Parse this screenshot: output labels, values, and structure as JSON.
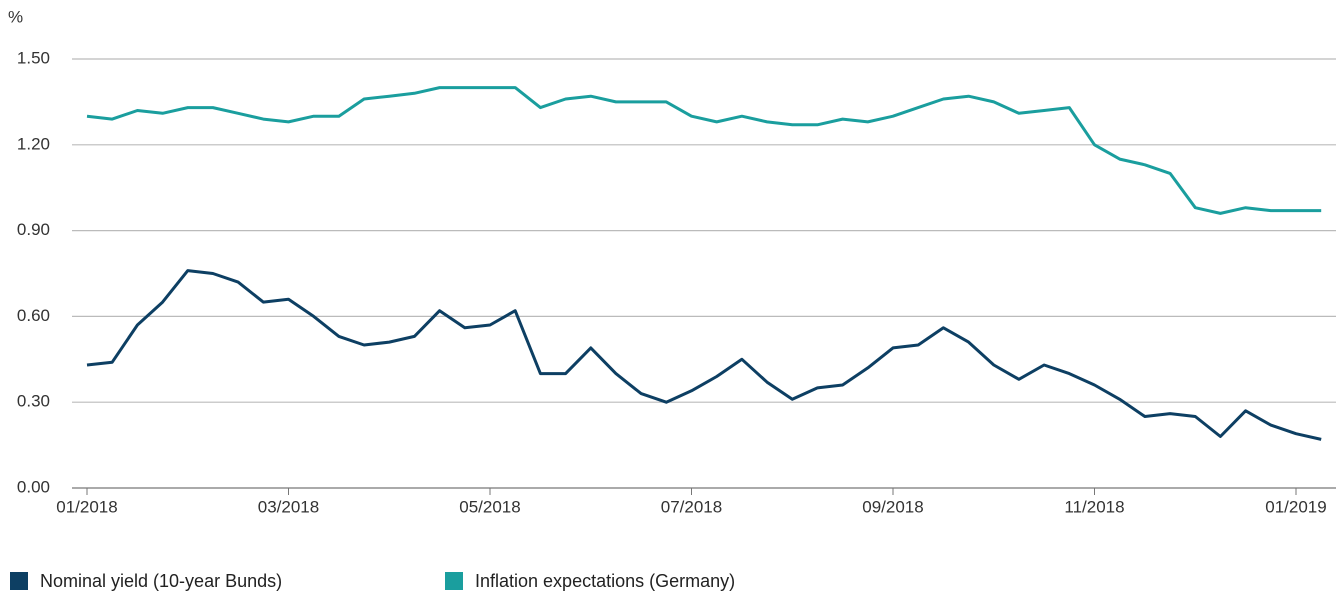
{
  "chart_data": {
    "type": "line",
    "y_label": "%",
    "categories": [
      "01/2018",
      null,
      null,
      null,
      null,
      null,
      null,
      null,
      "03/2018",
      null,
      null,
      null,
      null,
      null,
      null,
      null,
      "05/2018",
      null,
      null,
      null,
      null,
      null,
      null,
      null,
      "07/2018",
      null,
      null,
      null,
      null,
      null,
      null,
      null,
      "09/2018",
      null,
      null,
      null,
      null,
      null,
      null,
      null,
      "11/2018",
      null,
      null,
      null,
      null,
      null,
      null,
      null,
      "01/2019",
      null
    ],
    "series": [
      {
        "name": "Nominal yield (10-year Bunds)",
        "color": "#0d3f63",
        "values": [
          0.43,
          0.44,
          0.57,
          0.65,
          0.76,
          0.75,
          0.72,
          0.65,
          0.66,
          0.6,
          0.53,
          0.5,
          0.51,
          0.53,
          0.62,
          0.56,
          0.57,
          0.62,
          0.4,
          0.4,
          0.49,
          0.4,
          0.33,
          0.3,
          0.34,
          0.39,
          0.45,
          0.37,
          0.31,
          0.35,
          0.36,
          0.42,
          0.49,
          0.5,
          0.56,
          0.51,
          0.43,
          0.38,
          0.43,
          0.4,
          0.36,
          0.31,
          0.25,
          0.26,
          0.25,
          0.18,
          0.27,
          0.22,
          0.19,
          0.17
        ]
      },
      {
        "name": "Inflation expectations (Germany)",
        "color": "#1a9e9e",
        "values": [
          1.3,
          1.29,
          1.32,
          1.31,
          1.33,
          1.33,
          1.31,
          1.29,
          1.28,
          1.3,
          1.3,
          1.36,
          1.37,
          1.38,
          1.4,
          1.4,
          1.4,
          1.4,
          1.33,
          1.36,
          1.37,
          1.35,
          1.35,
          1.35,
          1.3,
          1.28,
          1.3,
          1.28,
          1.27,
          1.27,
          1.29,
          1.28,
          1.3,
          1.33,
          1.36,
          1.37,
          1.35,
          1.31,
          1.32,
          1.33,
          1.2,
          1.15,
          1.13,
          1.1,
          0.98,
          0.96,
          0.98,
          0.97,
          0.97,
          0.97
        ]
      }
    ],
    "ylim": [
      0,
      1.5
    ],
    "yticks": [
      {
        "value": 0,
        "label": "0.00"
      },
      {
        "value": 0.3,
        "label": "0.30"
      },
      {
        "value": 0.6,
        "label": "0.60"
      },
      {
        "value": 0.9,
        "label": "0.90"
      },
      {
        "value": 1.2,
        "label": "1.20"
      },
      {
        "value": 1.5,
        "label": "1.50"
      }
    ],
    "grid": true
  }
}
